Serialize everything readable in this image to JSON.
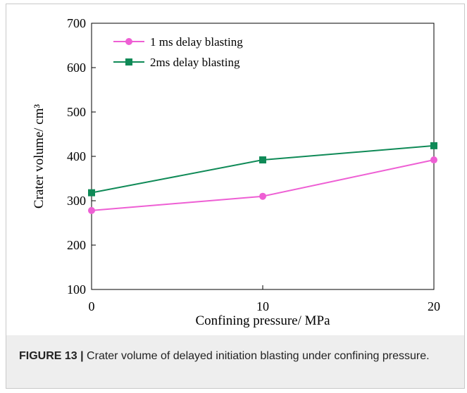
{
  "chart_data": {
    "type": "line",
    "xlabel": "Confining pressure/ MPa",
    "ylabel": "Crater volume/ cm³",
    "x": [
      0,
      10,
      20
    ],
    "xlim": [
      0,
      20
    ],
    "ylim": [
      100,
      700
    ],
    "xticks": [
      "0",
      "10",
      "20"
    ],
    "yticks": [
      "100",
      "200",
      "300",
      "400",
      "500",
      "600",
      "700"
    ],
    "grid": false,
    "legend_position": "top-left",
    "series": [
      {
        "name": "1 ms delay blasting",
        "values": [
          278,
          310,
          392
        ],
        "color": "#ee5fd4",
        "marker": "circle"
      },
      {
        "name": "2ms delay blasting",
        "values": [
          318,
          392,
          424
        ],
        "color": "#0f8a57",
        "marker": "square"
      }
    ]
  },
  "caption": {
    "label": "FIGURE 13 |",
    "text": " Crater volume of delayed initiation blasting under confining pressure."
  }
}
